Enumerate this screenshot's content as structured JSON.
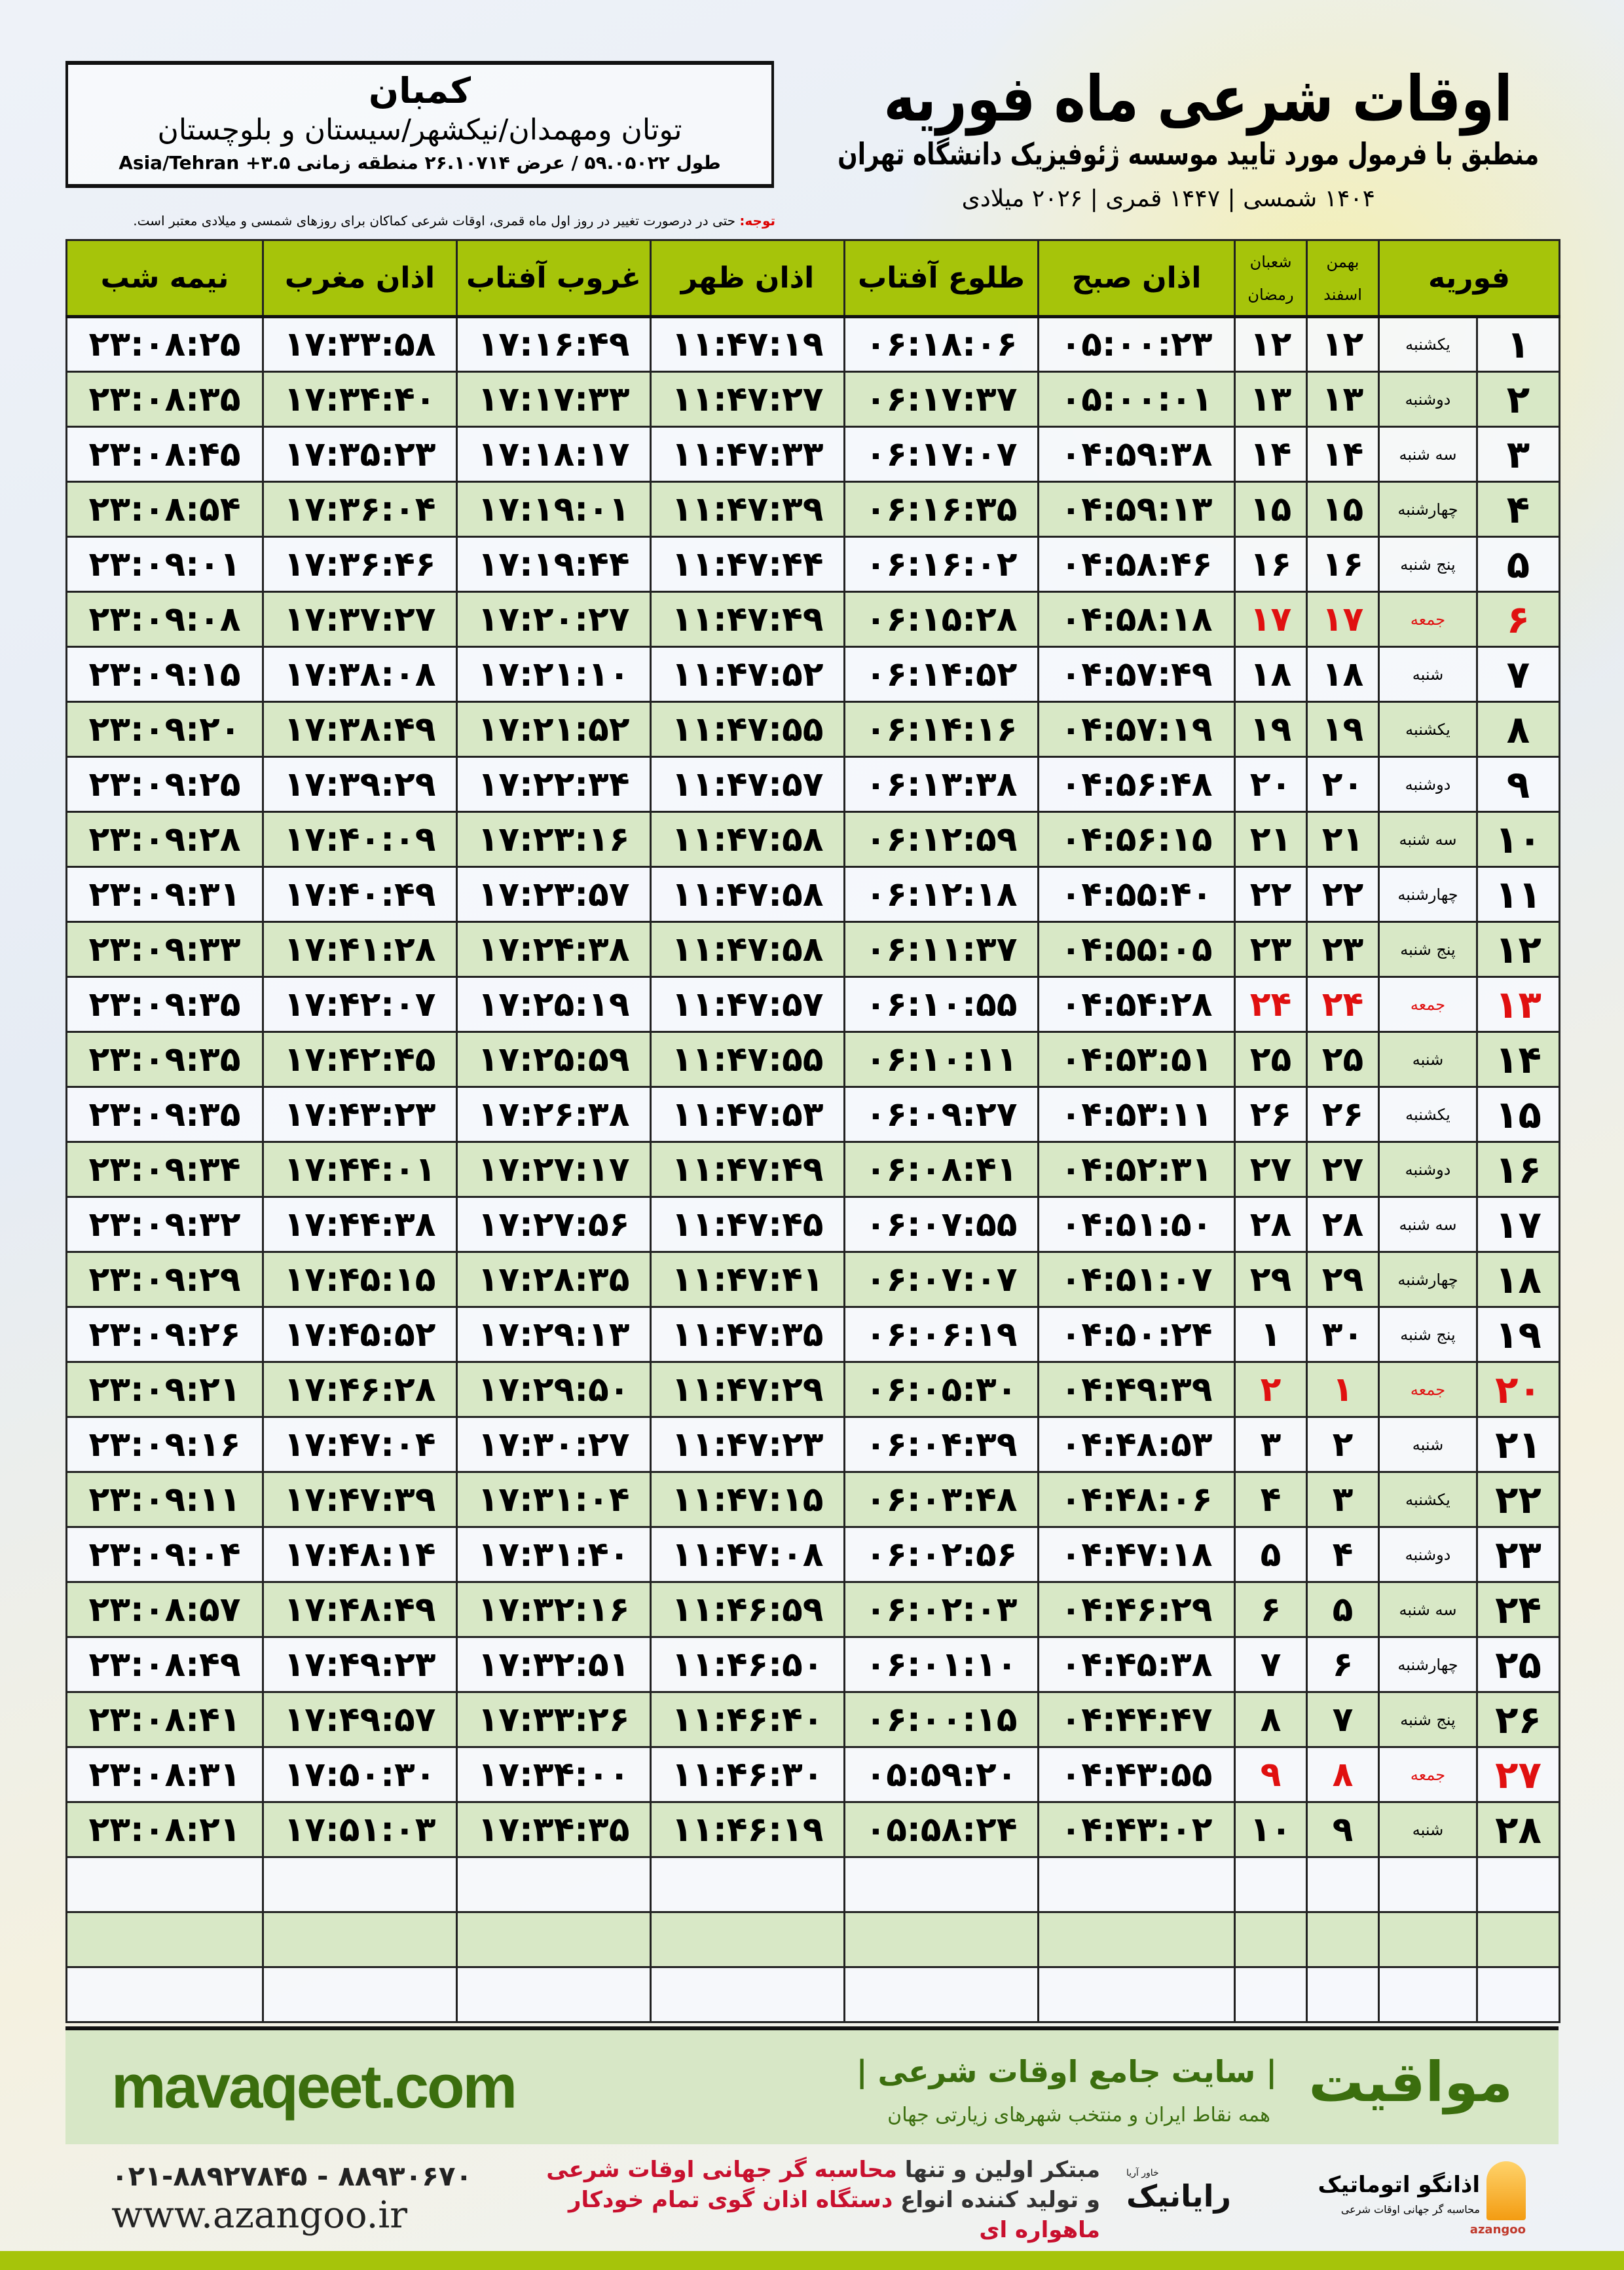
{
  "header": {
    "title": "اوقات شرعی ماه فوریه",
    "subtitle": "منطبق با فرمول مورد تایید موسسه ژئوفیزیک دانشگاه تهران",
    "dates": "۱۴۰۴ شمسی | ۱۴۴۷ قمری | ۲۰۲۶ میلادی",
    "note_label": "توجه:",
    "note_text": " حتی در درصورت تغییر در روز اول ماه قمری، اوقات شرعی کماکان برای روزهای شمسی و میلادی معتبر است."
  },
  "location": {
    "city": "کمبان",
    "region": "توتان ومهمدان/نیکشهر/سیستان و بلوچستان",
    "coords": "طول ۵۹.۰۵۰۲۲ / عرض ۲۶.۱۰۷۱۴ منطقه زمانی ۳.۵+ Asia/Tehran"
  },
  "table": {
    "headers": {
      "month": "فوریه",
      "shamsi_top": "بهمن",
      "shamsi_bottom": "اسفند",
      "qamari_top": "شعبان",
      "qamari_bottom": "رمضان",
      "sobh": "اذان صبح",
      "tolu": "طلوع آفتاب",
      "zohr": "اذان ظهر",
      "ghorub": "غروب آفتاب",
      "maghreb": "اذان مغرب",
      "nime": "نیمه شب"
    },
    "highlight_color": "#e01010",
    "rows": [
      [
        "۱",
        "یکشنبه",
        "۱۲",
        "۱۲",
        "۰۵:۰۰:۲۳",
        "۰۶:۱۸:۰۶",
        "۱۱:۴۷:۱۹",
        "۱۷:۱۶:۴۹",
        "۱۷:۳۳:۵۸",
        "۲۳:۰۸:۲۵"
      ],
      [
        "۲",
        "دوشنبه",
        "۱۳",
        "۱۳",
        "۰۵:۰۰:۰۱",
        "۰۶:۱۷:۳۷",
        "۱۱:۴۷:۲۷",
        "۱۷:۱۷:۳۳",
        "۱۷:۳۴:۴۰",
        "۲۳:۰۸:۳۵"
      ],
      [
        "۳",
        "سه شنبه",
        "۱۴",
        "۱۴",
        "۰۴:۵۹:۳۸",
        "۰۶:۱۷:۰۷",
        "۱۱:۴۷:۳۳",
        "۱۷:۱۸:۱۷",
        "۱۷:۳۵:۲۳",
        "۲۳:۰۸:۴۵"
      ],
      [
        "۴",
        "چهارشنبه",
        "۱۵",
        "۱۵",
        "۰۴:۵۹:۱۳",
        "۰۶:۱۶:۳۵",
        "۱۱:۴۷:۳۹",
        "۱۷:۱۹:۰۱",
        "۱۷:۳۶:۰۴",
        "۲۳:۰۸:۵۴"
      ],
      [
        "۵",
        "پنج شنبه",
        "۱۶",
        "۱۶",
        "۰۴:۵۸:۴۶",
        "۰۶:۱۶:۰۲",
        "۱۱:۴۷:۴۴",
        "۱۷:۱۹:۴۴",
        "۱۷:۳۶:۴۶",
        "۲۳:۰۹:۰۱"
      ],
      [
        "۶",
        "جمعه",
        "۱۷",
        "۱۷",
        "۰۴:۵۸:۱۸",
        "۰۶:۱۵:۲۸",
        "۱۱:۴۷:۴۹",
        "۱۷:۲۰:۲۷",
        "۱۷:۳۷:۲۷",
        "۲۳:۰۹:۰۸"
      ],
      [
        "۷",
        "شنبه",
        "۱۸",
        "۱۸",
        "۰۴:۵۷:۴۹",
        "۰۶:۱۴:۵۲",
        "۱۱:۴۷:۵۲",
        "۱۷:۲۱:۱۰",
        "۱۷:۳۸:۰۸",
        "۲۳:۰۹:۱۵"
      ],
      [
        "۸",
        "یکشنبه",
        "۱۹",
        "۱۹",
        "۰۴:۵۷:۱۹",
        "۰۶:۱۴:۱۶",
        "۱۱:۴۷:۵۵",
        "۱۷:۲۱:۵۲",
        "۱۷:۳۸:۴۹",
        "۲۳:۰۹:۲۰"
      ],
      [
        "۹",
        "دوشنبه",
        "۲۰",
        "۲۰",
        "۰۴:۵۶:۴۸",
        "۰۶:۱۳:۳۸",
        "۱۱:۴۷:۵۷",
        "۱۷:۲۲:۳۴",
        "۱۷:۳۹:۲۹",
        "۲۳:۰۹:۲۵"
      ],
      [
        "۱۰",
        "سه شنبه",
        "۲۱",
        "۲۱",
        "۰۴:۵۶:۱۵",
        "۰۶:۱۲:۵۹",
        "۱۱:۴۷:۵۸",
        "۱۷:۲۳:۱۶",
        "۱۷:۴۰:۰۹",
        "۲۳:۰۹:۲۸"
      ],
      [
        "۱۱",
        "چهارشنبه",
        "۲۲",
        "۲۲",
        "۰۴:۵۵:۴۰",
        "۰۶:۱۲:۱۸",
        "۱۱:۴۷:۵۸",
        "۱۷:۲۳:۵۷",
        "۱۷:۴۰:۴۹",
        "۲۳:۰۹:۳۱"
      ],
      [
        "۱۲",
        "پنج شنبه",
        "۲۳",
        "۲۳",
        "۰۴:۵۵:۰۵",
        "۰۶:۱۱:۳۷",
        "۱۱:۴۷:۵۸",
        "۱۷:۲۴:۳۸",
        "۱۷:۴۱:۲۸",
        "۲۳:۰۹:۳۳"
      ],
      [
        "۱۳",
        "جمعه",
        "۲۴",
        "۲۴",
        "۰۴:۵۴:۲۸",
        "۰۶:۱۰:۵۵",
        "۱۱:۴۷:۵۷",
        "۱۷:۲۵:۱۹",
        "۱۷:۴۲:۰۷",
        "۲۳:۰۹:۳۵"
      ],
      [
        "۱۴",
        "شنبه",
        "۲۵",
        "۲۵",
        "۰۴:۵۳:۵۱",
        "۰۶:۱۰:۱۱",
        "۱۱:۴۷:۵۵",
        "۱۷:۲۵:۵۹",
        "۱۷:۴۲:۴۵",
        "۲۳:۰۹:۳۵"
      ],
      [
        "۱۵",
        "یکشنبه",
        "۲۶",
        "۲۶",
        "۰۴:۵۳:۱۱",
        "۰۶:۰۹:۲۷",
        "۱۱:۴۷:۵۳",
        "۱۷:۲۶:۳۸",
        "۱۷:۴۳:۲۳",
        "۲۳:۰۹:۳۵"
      ],
      [
        "۱۶",
        "دوشنبه",
        "۲۷",
        "۲۷",
        "۰۴:۵۲:۳۱",
        "۰۶:۰۸:۴۱",
        "۱۱:۴۷:۴۹",
        "۱۷:۲۷:۱۷",
        "۱۷:۴۴:۰۱",
        "۲۳:۰۹:۳۴"
      ],
      [
        "۱۷",
        "سه شنبه",
        "۲۸",
        "۲۸",
        "۰۴:۵۱:۵۰",
        "۰۶:۰۷:۵۵",
        "۱۱:۴۷:۴۵",
        "۱۷:۲۷:۵۶",
        "۱۷:۴۴:۳۸",
        "۲۳:۰۹:۳۲"
      ],
      [
        "۱۸",
        "چهارشنبه",
        "۲۹",
        "۲۹",
        "۰۴:۵۱:۰۷",
        "۰۶:۰۷:۰۷",
        "۱۱:۴۷:۴۱",
        "۱۷:۲۸:۳۵",
        "۱۷:۴۵:۱۵",
        "۲۳:۰۹:۲۹"
      ],
      [
        "۱۹",
        "پنج شنبه",
        "۳۰",
        "۱",
        "۰۴:۵۰:۲۴",
        "۰۶:۰۶:۱۹",
        "۱۱:۴۷:۳۵",
        "۱۷:۲۹:۱۳",
        "۱۷:۴۵:۵۲",
        "۲۳:۰۹:۲۶"
      ],
      [
        "۲۰",
        "جمعه",
        "۱",
        "۲",
        "۰۴:۴۹:۳۹",
        "۰۶:۰۵:۳۰",
        "۱۱:۴۷:۲۹",
        "۱۷:۲۹:۵۰",
        "۱۷:۴۶:۲۸",
        "۲۳:۰۹:۲۱"
      ],
      [
        "۲۱",
        "شنبه",
        "۲",
        "۳",
        "۰۴:۴۸:۵۳",
        "۰۶:۰۴:۳۹",
        "۱۱:۴۷:۲۳",
        "۱۷:۳۰:۲۷",
        "۱۷:۴۷:۰۴",
        "۲۳:۰۹:۱۶"
      ],
      [
        "۲۲",
        "یکشنبه",
        "۳",
        "۴",
        "۰۴:۴۸:۰۶",
        "۰۶:۰۳:۴۸",
        "۱۱:۴۷:۱۵",
        "۱۷:۳۱:۰۴",
        "۱۷:۴۷:۳۹",
        "۲۳:۰۹:۱۱"
      ],
      [
        "۲۳",
        "دوشنبه",
        "۴",
        "۵",
        "۰۴:۴۷:۱۸",
        "۰۶:۰۲:۵۶",
        "۱۱:۴۷:۰۸",
        "۱۷:۳۱:۴۰",
        "۱۷:۴۸:۱۴",
        "۲۳:۰۹:۰۴"
      ],
      [
        "۲۴",
        "سه شنبه",
        "۵",
        "۶",
        "۰۴:۴۶:۲۹",
        "۰۶:۰۲:۰۳",
        "۱۱:۴۶:۵۹",
        "۱۷:۳۲:۱۶",
        "۱۷:۴۸:۴۹",
        "۲۳:۰۸:۵۷"
      ],
      [
        "۲۵",
        "چهارشنبه",
        "۶",
        "۷",
        "۰۴:۴۵:۳۸",
        "۰۶:۰۱:۱۰",
        "۱۱:۴۶:۵۰",
        "۱۷:۳۲:۵۱",
        "۱۷:۴۹:۲۳",
        "۲۳:۰۸:۴۹"
      ],
      [
        "۲۶",
        "پنج شنبه",
        "۷",
        "۸",
        "۰۴:۴۴:۴۷",
        "۰۶:۰۰:۱۵",
        "۱۱:۴۶:۴۰",
        "۱۷:۳۳:۲۶",
        "۱۷:۴۹:۵۷",
        "۲۳:۰۸:۴۱"
      ],
      [
        "۲۷",
        "جمعه",
        "۸",
        "۹",
        "۰۴:۴۳:۵۵",
        "۰۵:۵۹:۲۰",
        "۱۱:۴۶:۳۰",
        "۱۷:۳۴:۰۰",
        "۱۷:۵۰:۳۰",
        "۲۳:۰۸:۳۱"
      ],
      [
        "۲۸",
        "شنبه",
        "۹",
        "۱۰",
        "۰۴:۴۳:۰۲",
        "۰۵:۵۸:۲۴",
        "۱۱:۴۶:۱۹",
        "۱۷:۳۴:۳۵",
        "۱۷:۵۱:۰۳",
        "۲۳:۰۸:۲۱"
      ]
    ]
  },
  "band": {
    "brand": "مواقیت",
    "tagline": "| سایت جامع اوقات شرعی |",
    "sub": "همه نقاط ایران و منتخب شهرهای زیارتی جهان",
    "site": "mavaqeet.com",
    "color": "#3b6e0e"
  },
  "footer": {
    "phones": "۰۲۱-۸۸۹۲۷۸۴۵ - ۸۸۹۳۰۶۷۰",
    "web": "www.azangoo.ir",
    "promo_1a": "مبتکر اولین و تنها ",
    "promo_1b": "محاسبه گر جهانی اوقات شرعی",
    "promo_2a": "و تولید کننده انواع ",
    "promo_2b": "دستگاه اذان گوی تمام خودکار ماهواره ای",
    "rayanik": "رایانیک",
    "rayanik_sub": "خاور آریا",
    "azangoo_name": "اذانگو اتوماتیک",
    "azangoo_tag": "محاسبه گر جهانی اوقات شرعی",
    "azangoo_en": "azangoo"
  }
}
